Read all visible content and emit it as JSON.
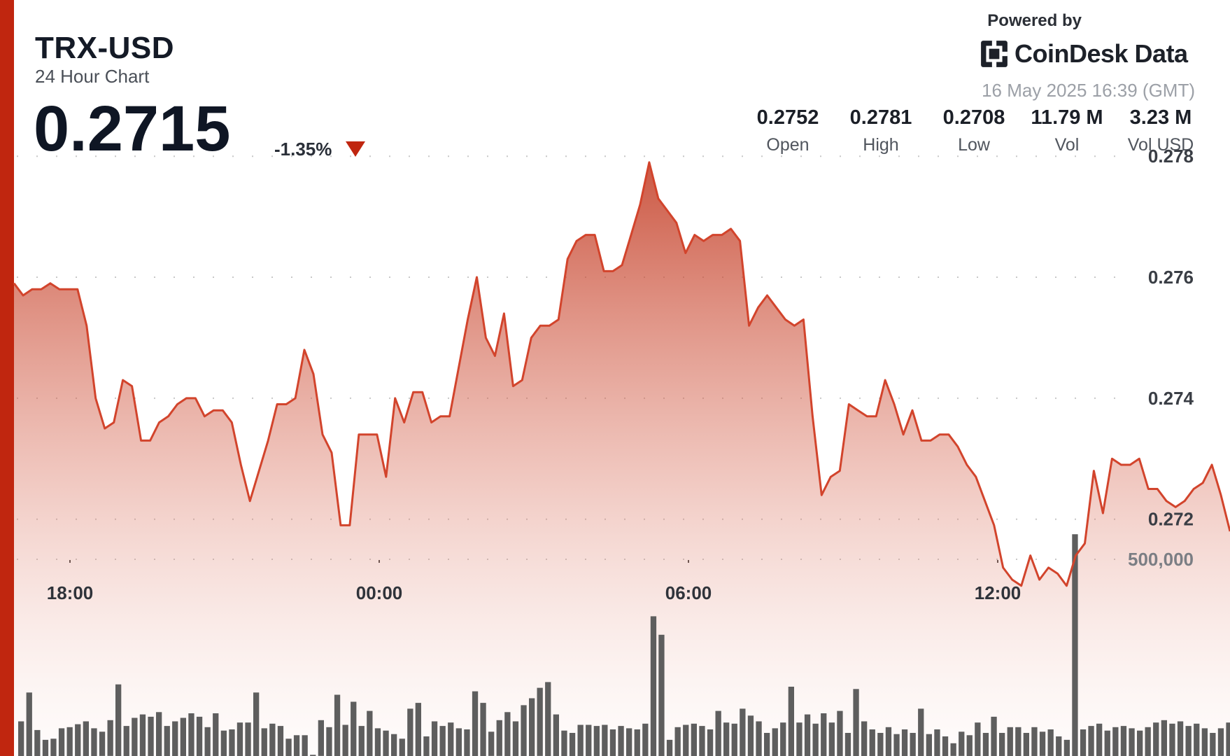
{
  "header": {
    "symbol": "TRX-USD",
    "subtitle": "24 Hour Chart",
    "price": "0.2715",
    "change": "-1.35%",
    "direction_icon": "triangle-down-icon"
  },
  "branding": {
    "powered_by": "Powered by",
    "name": "CoinDesk Data",
    "logo_icon": "coindesk-logo-icon",
    "timestamp": "16 May 2025 16:39 (GMT)"
  },
  "stats": [
    {
      "value": "0.2752",
      "label": "Open"
    },
    {
      "value": "0.2781",
      "label": "High"
    },
    {
      "value": "0.2708",
      "label": "Low"
    },
    {
      "value": "11.79 M",
      "label": "Vol"
    },
    {
      "value": "3.23 M",
      "label": "Vol USD"
    }
  ],
  "colors": {
    "accent": "#c0260f",
    "line": "#d2442c",
    "fill": "#c23a22",
    "volume": "#5e5e5e",
    "grid": "#c8c8c8"
  },
  "chart_data": [
    {
      "type": "area",
      "series": [
        {
          "values": [
            0.2759,
            0.2757,
            0.2758,
            0.2758,
            0.2759,
            0.2758,
            0.2758,
            0.2758,
            0.2752,
            0.274,
            0.2735,
            0.2736,
            0.2743,
            0.2742,
            0.2733,
            0.2733,
            0.2736,
            0.2737,
            0.2739,
            0.274,
            0.274,
            0.2737,
            0.2738,
            0.2738,
            0.2736,
            0.2729,
            0.2723,
            0.2728,
            0.2733,
            0.2739,
            0.2739,
            0.274,
            0.2748,
            0.2744,
            0.2734,
            0.2731,
            0.2719,
            0.2719,
            0.2734,
            0.2734,
            0.2734,
            0.2727,
            0.274,
            0.2736,
            0.2741,
            0.2741,
            0.2736,
            0.2737,
            0.2737,
            0.2745,
            0.2753,
            0.276,
            0.275,
            0.2747,
            0.2754,
            0.2742,
            0.2743,
            0.275,
            0.2752,
            0.2752,
            0.2753,
            0.2763,
            0.2766,
            0.2767,
            0.2767,
            0.2761,
            0.2761,
            0.2762,
            0.2767,
            0.2772,
            0.2779,
            0.2773,
            0.2771,
            0.2769,
            0.2764,
            0.2767,
            0.2766,
            0.2767,
            0.2767,
            0.2768,
            0.2766,
            0.2752,
            0.2755,
            0.2757,
            0.2755,
            0.2753,
            0.2752,
            0.2753,
            0.2737,
            0.2724,
            0.2727,
            0.2728,
            0.2739,
            0.2738,
            0.2737,
            0.2737,
            0.2743,
            0.2739,
            0.2734,
            0.2738,
            0.2733,
            0.2733,
            0.2734,
            0.2734,
            0.2732,
            0.2729,
            0.2727,
            0.2723,
            0.2719,
            0.2712,
            0.271,
            0.2709,
            0.2714,
            0.271,
            0.2712,
            0.2711,
            0.2709,
            0.2714,
            0.2716,
            0.2728,
            0.2721,
            0.273,
            0.2729,
            0.2729,
            0.273,
            0.2725,
            0.2725,
            0.2723,
            0.2722,
            0.2723,
            0.2725,
            0.2726,
            0.2729,
            0.2724,
            0.2718
          ]
        }
      ],
      "x_ticks": [
        "18:00",
        "00:00",
        "06:00",
        "12:00"
      ],
      "y_ticks": [
        "0.278",
        "0.276",
        "0.274",
        "0.272"
      ],
      "ylim": [
        0.2704,
        0.2785
      ],
      "grid": true
    },
    {
      "type": "bar",
      "series": [
        {
          "values": [
            60,
            110,
            45,
            28,
            30,
            48,
            50,
            55,
            60,
            48,
            42,
            62,
            124,
            52,
            66,
            72,
            68,
            76,
            52,
            60,
            66,
            74,
            68,
            50,
            74,
            44,
            46,
            58,
            58,
            110,
            48,
            56,
            52,
            30,
            36,
            36,
            2,
            62,
            50,
            106,
            54,
            94,
            52,
            78,
            48,
            44,
            38,
            30,
            82,
            92,
            34,
            60,
            52,
            58,
            48,
            46,
            112,
            92,
            42,
            62,
            76,
            60,
            88,
            100,
            118,
            128,
            72,
            44,
            40,
            54,
            54,
            52,
            54,
            46,
            52,
            48,
            46,
            56,
            242,
            210,
            28,
            50,
            54,
            56,
            52,
            46,
            78,
            58,
            56,
            82,
            70,
            60,
            40,
            48,
            58,
            120,
            58,
            72,
            56,
            74,
            58,
            78,
            40,
            116,
            60,
            46,
            40,
            50,
            38,
            46,
            40,
            82,
            38,
            46,
            34,
            22,
            42,
            36,
            58,
            40,
            68,
            40,
            50,
            50,
            40,
            50,
            42,
            46,
            34,
            28,
            384,
            46,
            52,
            56,
            44,
            50,
            52,
            48,
            44,
            50,
            58,
            62,
            56,
            60,
            52,
            56,
            48,
            40,
            48,
            58
          ]
        }
      ],
      "y_ticks": [
        "500,000"
      ],
      "max_value": 400
    }
  ]
}
